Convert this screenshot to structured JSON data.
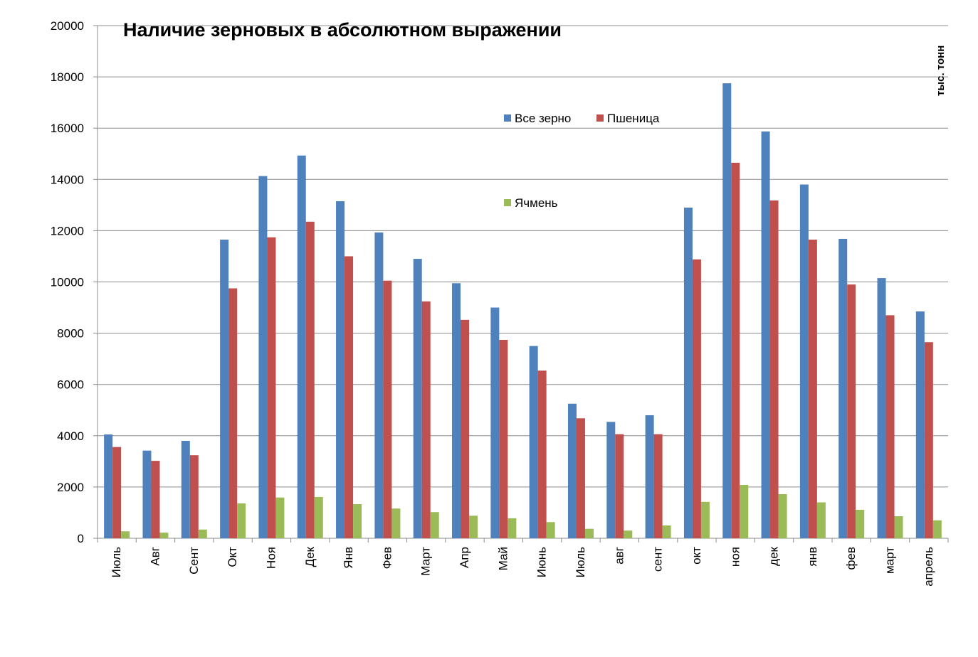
{
  "chart_data": {
    "type": "bar",
    "title": "Наличие зерновых в абсолютном выражении",
    "unit_label": "тыс. тонн",
    "categories": [
      "Июль",
      "Авг",
      "Сент",
      "Окт",
      "Ноя",
      "Дек",
      "Янв",
      "Фев",
      "Март",
      "Апр",
      "Май",
      "Июнь",
      "Июль",
      "авг",
      "сент",
      "окт",
      "ноя",
      "дек",
      "янв",
      "фев",
      "март",
      "апрель"
    ],
    "series": [
      {
        "name": "Все зерно",
        "color": "#4F81BD",
        "values": [
          4050,
          3420,
          3800,
          11650,
          14130,
          14930,
          13150,
          11930,
          10900,
          9950,
          9000,
          7500,
          5250,
          4540,
          4800,
          12900,
          17750,
          15870,
          13800,
          11680,
          10150,
          8850
        ]
      },
      {
        "name": "Пшеница",
        "color": "#C0504D",
        "values": [
          3560,
          3020,
          3240,
          9750,
          11740,
          12350,
          11000,
          10050,
          9240,
          8520,
          7740,
          6540,
          4680,
          4060,
          4060,
          10880,
          14650,
          13180,
          11650,
          9900,
          8700,
          7650
        ]
      },
      {
        "name": "Ячмень",
        "color": "#9BBB59",
        "values": [
          270,
          220,
          340,
          1360,
          1590,
          1610,
          1330,
          1160,
          1020,
          880,
          780,
          630,
          370,
          300,
          500,
          1420,
          2080,
          1720,
          1400,
          1110,
          860,
          700
        ]
      }
    ],
    "ylim": [
      0,
      20000
    ],
    "yticks": [
      0,
      2000,
      4000,
      6000,
      8000,
      10000,
      12000,
      14000,
      16000,
      18000,
      20000
    ],
    "grid": true,
    "legend": "top-center"
  }
}
